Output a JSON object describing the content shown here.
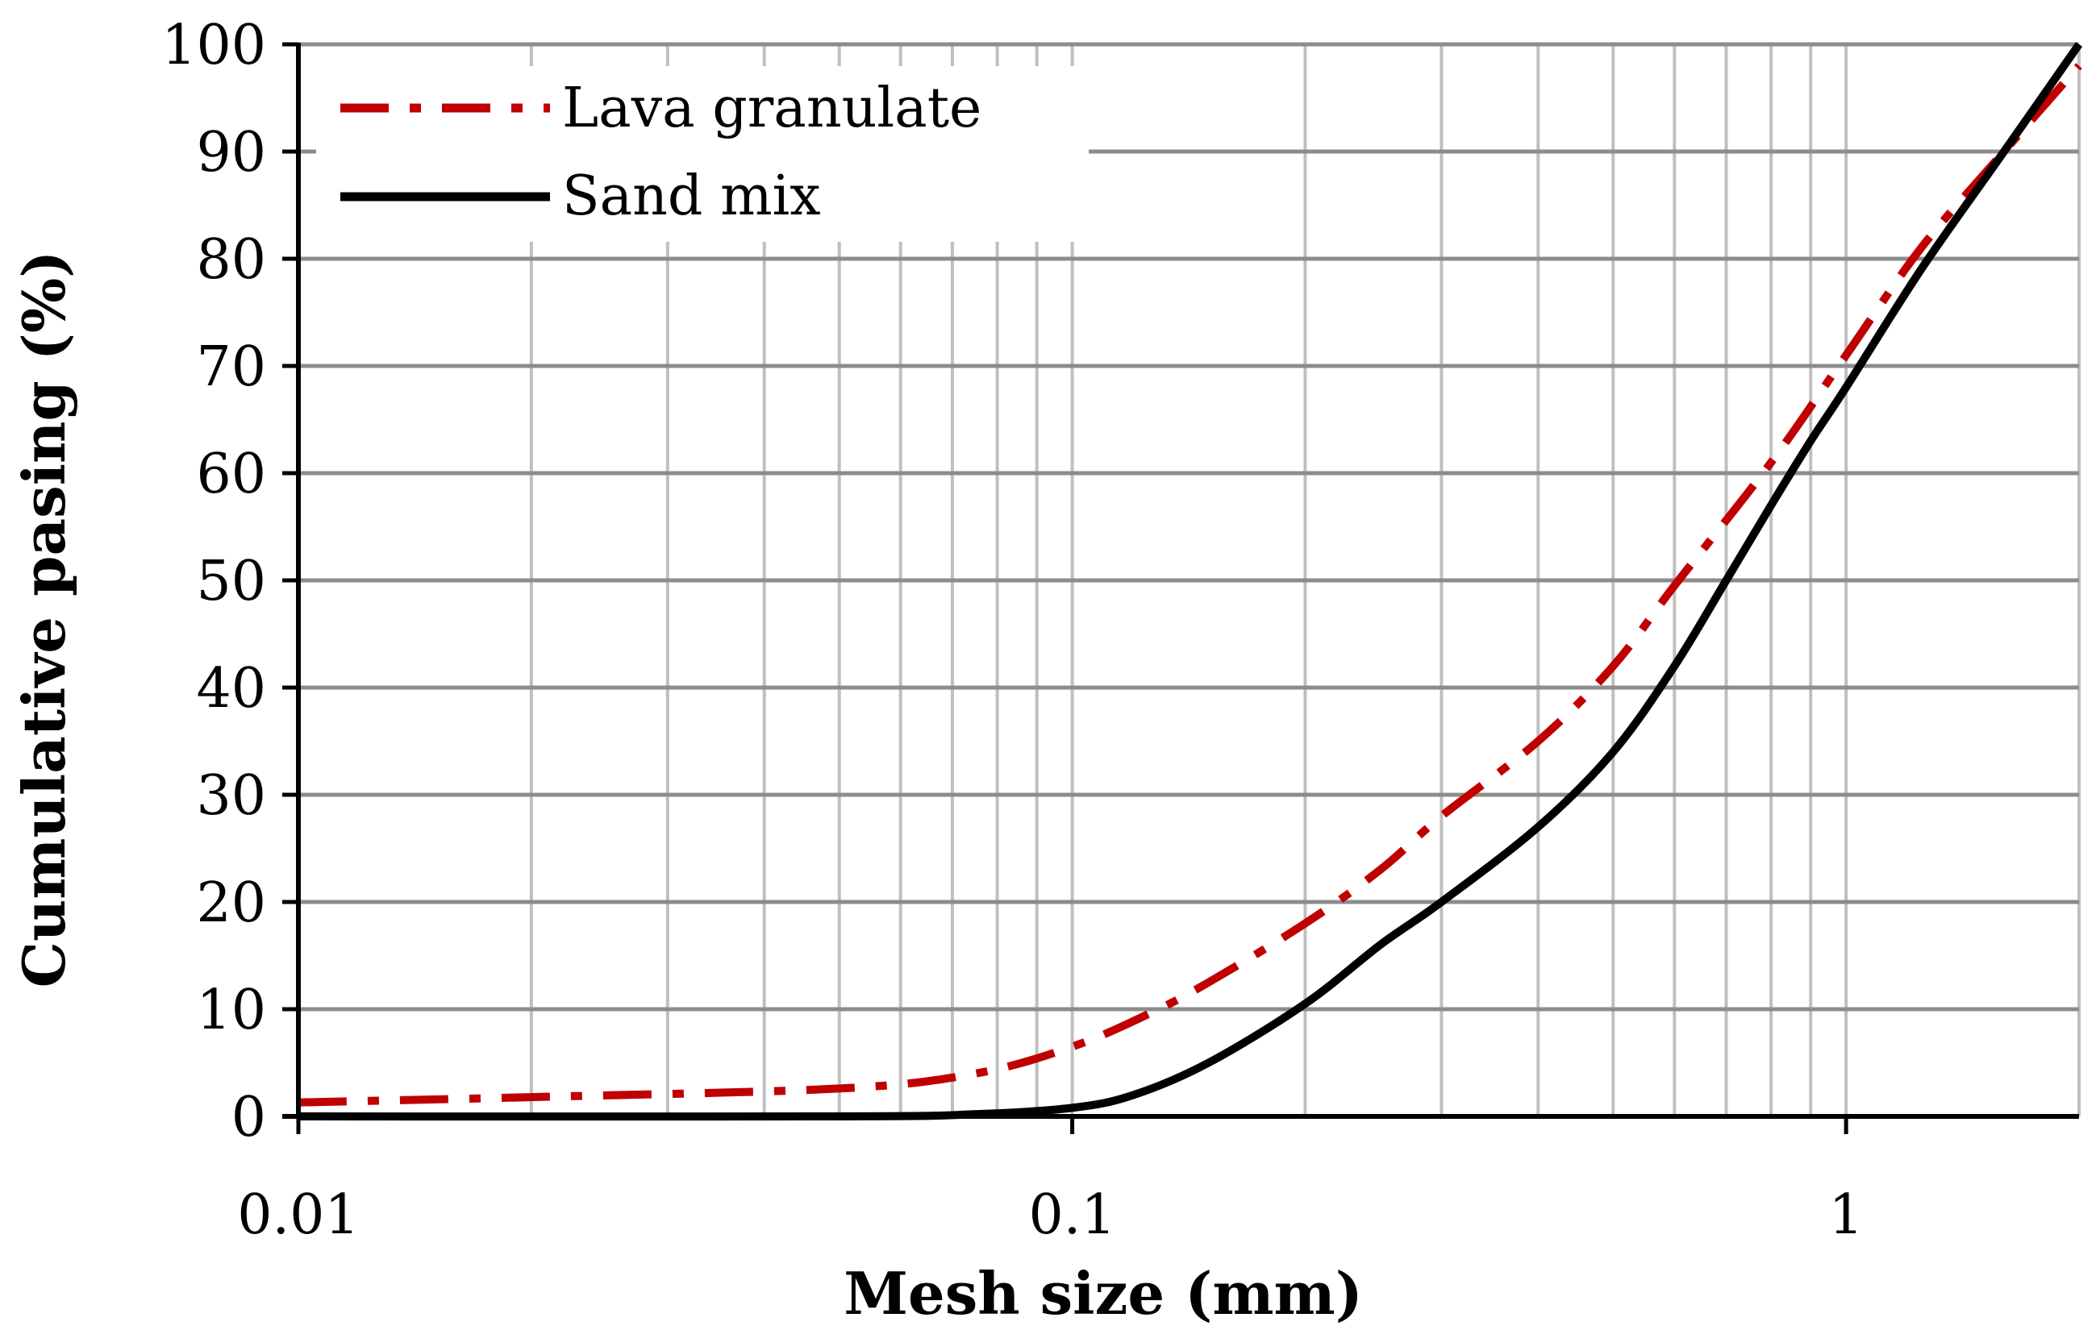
{
  "chart_data": {
    "type": "line",
    "title": "",
    "xlabel": "Mesh size (mm)",
    "ylabel": "Cumulative pasing (%)",
    "xscale": "log",
    "xlim": [
      0.01,
      2
    ],
    "ylim": [
      0,
      100
    ],
    "grid": true,
    "legend_position": "top-left",
    "x_tick_labels": [
      "0.01",
      "0.1",
      "1"
    ],
    "y_tick_labels": [
      "0",
      "10",
      "20",
      "30",
      "40",
      "50",
      "60",
      "70",
      "80",
      "90",
      "100"
    ],
    "series": [
      {
        "name": "Lava granulate",
        "style": "dash-dot",
        "color": "#C00000",
        "x": [
          0.01,
          0.02,
          0.05,
          0.075,
          0.1,
          0.125,
          0.15,
          0.2,
          0.25,
          0.3,
          0.4,
          0.5,
          0.6,
          0.8,
          1.0,
          1.25,
          1.6,
          2.0
        ],
        "y": [
          1.3,
          1.8,
          2.6,
          4.0,
          6.5,
          9.5,
          12.5,
          18.0,
          23.0,
          28.0,
          35.0,
          42.0,
          49.5,
          61.0,
          71.0,
          81.0,
          90.0,
          98.0
        ]
      },
      {
        "name": "Sand mix",
        "style": "solid",
        "color": "#000000",
        "x": [
          0.01,
          0.05,
          0.075,
          0.1,
          0.12,
          0.15,
          0.2,
          0.25,
          0.3,
          0.4,
          0.5,
          0.6,
          0.7,
          0.8,
          0.9,
          1.0,
          1.25,
          1.6,
          2.0
        ],
        "y": [
          0,
          0,
          0.2,
          0.8,
          2.0,
          5.0,
          10.5,
          16.0,
          20.0,
          27.0,
          34.0,
          42.0,
          50.0,
          57.0,
          63.0,
          68.0,
          79.0,
          90.0,
          100.0
        ]
      }
    ]
  },
  "legend": [
    {
      "label": "Lava granulate"
    },
    {
      "label": "Sand mix"
    }
  ]
}
